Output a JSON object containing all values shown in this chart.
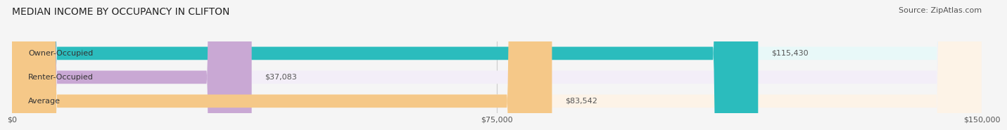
{
  "title": "MEDIAN INCOME BY OCCUPANCY IN CLIFTON",
  "source": "Source: ZipAtlas.com",
  "categories": [
    "Owner-Occupied",
    "Renter-Occupied",
    "Average"
  ],
  "values": [
    115430,
    37083,
    83542
  ],
  "labels": [
    "$115,430",
    "$37,083",
    "$83,542"
  ],
  "bar_colors": [
    "#2bbcbd",
    "#c9a8d4",
    "#f5c888"
  ],
  "bar_bg_colors": [
    "#e8f8f8",
    "#f3eef8",
    "#fdf3e7"
  ],
  "x_max": 150000,
  "x_ticks": [
    0,
    75000,
    150000
  ],
  "x_tick_labels": [
    "$0",
    "$75,000",
    "$150,000"
  ],
  "title_fontsize": 10,
  "source_fontsize": 8,
  "label_fontsize": 8,
  "bar_label_fontsize": 8,
  "category_fontsize": 8,
  "background_color": "#f5f5f5"
}
